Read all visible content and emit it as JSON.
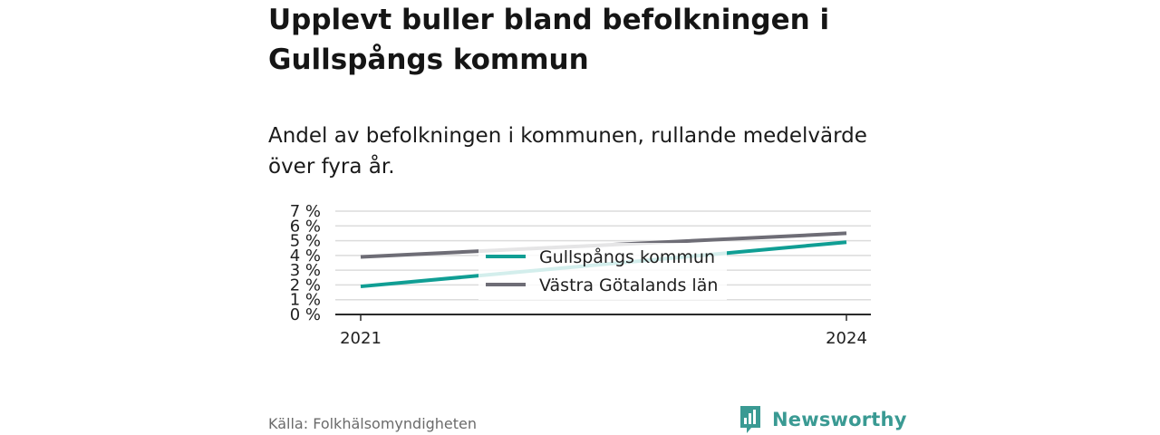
{
  "title": "Upplevt buller bland befolkningen i Gullspångs kommun",
  "subtitle": "Andel av befolkningen i kommunen, rullande medelvärde över fyra år.",
  "source": "Källa: Folkhälsomyndigheten",
  "brand": {
    "name": "Newsworthy",
    "color": "#3a9a93"
  },
  "chart_data": {
    "type": "line",
    "x": [
      "2021",
      "2024"
    ],
    "series": [
      {
        "name": "Gullspångs kommun",
        "values": [
          1.9,
          4.9
        ],
        "color": "#109e94"
      },
      {
        "name": "Västra Götalands län",
        "values": [
          3.9,
          5.5
        ],
        "color": "#6e6d76"
      }
    ],
    "ylim": [
      0,
      7
    ],
    "yticks": [
      0,
      1,
      2,
      3,
      4,
      5,
      6,
      7
    ],
    "ytick_labels": [
      "0 %",
      "1 %",
      "2 %",
      "3 %",
      "4 %",
      "5 %",
      "6 %",
      "7 %"
    ],
    "xticks": [
      "2021",
      "2024"
    ],
    "grid": true,
    "legend": "center"
  }
}
